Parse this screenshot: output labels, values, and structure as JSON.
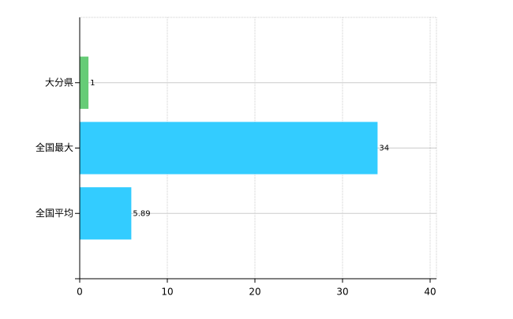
{
  "chart_data": {
    "type": "bar",
    "orientation": "horizontal",
    "categories": [
      "大分県",
      "全国最大",
      "全国平均"
    ],
    "values": [
      1,
      34,
      5.89
    ],
    "colors": [
      "#66cc77",
      "#33ccff",
      "#33ccff"
    ],
    "xlim": [
      0,
      40
    ],
    "xticks": [
      0,
      10,
      20,
      30,
      40
    ],
    "grid": true
  }
}
